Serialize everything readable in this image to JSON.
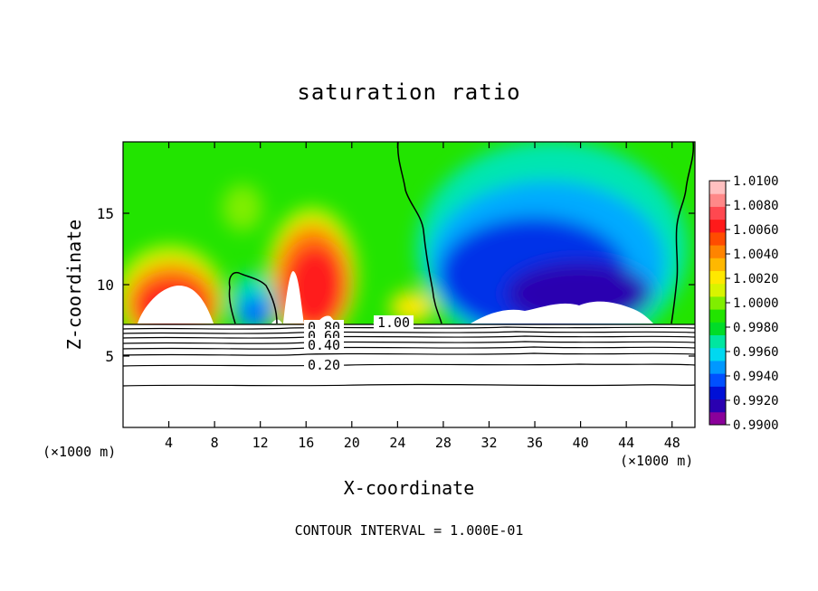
{
  "chart_data": {
    "type": "heatmap",
    "title": "saturation ratio",
    "xlabel": "X-coordinate",
    "ylabel": "Z-coordinate",
    "x_unit": "(×1000 m)",
    "xlim": [
      0,
      50
    ],
    "ylim": [
      0,
      20
    ],
    "x_ticks": [
      "4",
      "8",
      "12",
      "16",
      "20",
      "24",
      "28",
      "32",
      "36",
      "40",
      "44",
      "48"
    ],
    "y_ticks": [
      "5",
      "10",
      "15"
    ],
    "colorbar": {
      "min": 0.99,
      "max": 1.01,
      "labels": [
        "1.0100",
        "1.0080",
        "1.0060",
        "1.0040",
        "1.0020",
        "1.0000",
        "0.9980",
        "0.9960",
        "0.9940",
        "0.9920",
        "0.9900"
      ],
      "colors": [
        "#8a009a",
        "#2a00b0",
        "#0010d6",
        "#0050ff",
        "#0098ff",
        "#00d8f0",
        "#00e6a0",
        "#00dc28",
        "#22e400",
        "#80ee00",
        "#d8f400",
        "#ffe800",
        "#ffb800",
        "#ff8400",
        "#ff4c00",
        "#ff1a1a",
        "#ff4850",
        "#ff8888",
        "#ffc0c0"
      ]
    },
    "contour_interval": "CONTOUR INTERVAL = 1.000E-01",
    "contour_labels": [
      "1.00",
      "0.80",
      "0.60",
      "0.40",
      "0.20"
    ],
    "field_description": [
      {
        "x_range": [
          0,
          9
        ],
        "value": 1.008,
        "note": "supersaturated plume"
      },
      {
        "x_range": [
          10,
          13
        ],
        "value": 0.993,
        "note": "subsaturated pocket"
      },
      {
        "x_range": [
          13,
          21
        ],
        "value": 1.008,
        "note": "supersaturated plume"
      },
      {
        "x_range": [
          28,
          47
        ],
        "value": 0.991,
        "note": "subsaturated region"
      },
      {
        "x_range": [
          47,
          50
        ],
        "value": 1.0,
        "note": "near saturation"
      }
    ],
    "contour_lines": [
      {
        "level": 1.0,
        "z": 7.2
      },
      {
        "level": 0.8,
        "z": 6.8
      },
      {
        "level": 0.6,
        "z": 6.3
      },
      {
        "level": 0.4,
        "z": 5.6
      },
      {
        "level": 0.2,
        "z": 4.4
      },
      {
        "level": 0.1,
        "z": 3.0
      }
    ]
  },
  "text": {
    "title": "saturation ratio",
    "xlabel": "X-coordinate",
    "ylabel": "Z-coordinate",
    "xunit_left": "(×1000 m)",
    "xunit_right": "(×1000 m)",
    "contour_interval": "CONTOUR INTERVAL = 1.000E-01"
  }
}
